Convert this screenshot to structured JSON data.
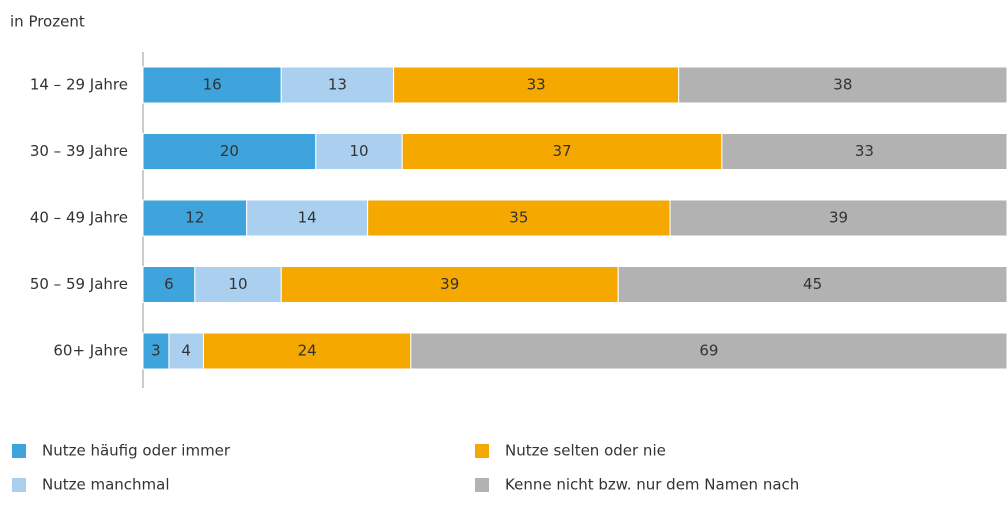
{
  "chart_data": {
    "type": "stacked-barh",
    "subtitle": "in Prozent",
    "categories": [
      "14 – 29 Jahre",
      "30 – 39 Jahre",
      "40 – 49 Jahre",
      "50 – 59 Jahre",
      "60+ Jahre"
    ],
    "series": [
      {
        "name": "Nutze häufig oder immer",
        "color": "#3fa3dc",
        "values": [
          16,
          20,
          12,
          6,
          3
        ]
      },
      {
        "name": "Nutze manchmal",
        "color": "#abcfee",
        "values": [
          13,
          10,
          14,
          10,
          4
        ]
      },
      {
        "name": "Nutze selten oder nie",
        "color": "#f5a800",
        "values": [
          33,
          37,
          35,
          39,
          24
        ]
      },
      {
        "name": "Kenne nicht bzw. nur dem Namen nach",
        "color": "#b2b2b2",
        "values": [
          38,
          33,
          39,
          45,
          69
        ]
      }
    ],
    "xlim": [
      0,
      100
    ]
  }
}
